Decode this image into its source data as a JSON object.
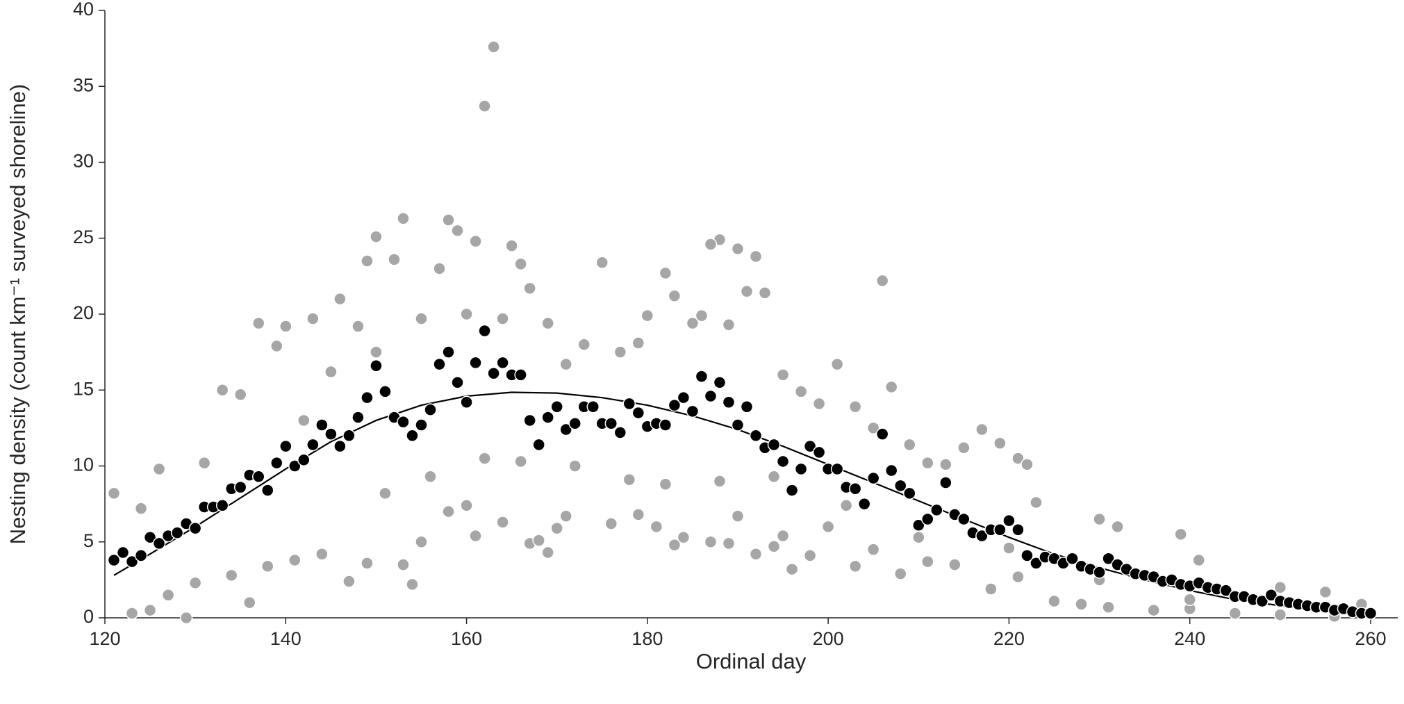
{
  "chart_data": {
    "type": "scatter",
    "x_label": "Ordinal day",
    "y_label": "Nesting density (count km⁻¹ surveyed shoreline)",
    "xlim": [
      120,
      263
    ],
    "ylim": [
      0,
      40
    ],
    "xticks": [
      120,
      140,
      160,
      180,
      200,
      220,
      240,
      260
    ],
    "yticks": [
      0,
      5,
      10,
      15,
      20,
      25,
      30,
      35,
      40
    ],
    "grid": false,
    "series": [
      {
        "mode": "markers",
        "color": "#a6a6a6",
        "x": [
          163,
          162,
          153,
          158,
          159,
          150,
          161,
          165,
          188,
          187,
          190,
          192,
          175,
          149,
          206,
          182,
          129,
          121,
          124,
          126,
          131,
          133,
          135,
          137,
          139,
          140,
          143,
          146,
          148,
          152,
          155,
          157,
          160,
          164,
          166,
          167,
          169,
          171,
          173,
          177,
          179,
          180,
          183,
          185,
          186,
          189,
          191,
          193,
          195,
          197,
          199,
          201,
          203,
          205,
          207,
          209,
          211,
          213,
          215,
          217,
          219,
          221,
          222,
          223,
          230,
          232,
          239,
          241,
          250,
          255,
          136,
          130,
          123,
          125,
          127,
          134,
          138,
          141,
          144,
          147,
          149,
          151,
          153,
          154,
          155,
          158,
          160,
          161,
          164,
          167,
          168,
          169,
          170,
          171,
          176,
          179,
          181,
          183,
          184,
          187,
          189,
          190,
          192,
          194,
          195,
          196,
          198,
          200,
          203,
          205,
          208,
          211,
          214,
          218,
          221,
          225,
          228,
          231,
          236,
          240,
          245,
          250,
          256,
          259,
          142,
          145,
          150,
          156,
          162,
          166,
          172,
          178,
          182,
          188,
          194,
          202,
          210,
          220,
          230,
          240
        ],
        "values": [
          37.6,
          33.7,
          26.3,
          26.2,
          25.5,
          25.1,
          24.8,
          24.5,
          24.9,
          24.6,
          24.3,
          23.8,
          23.4,
          23.5,
          22.2,
          22.7,
          0,
          8.2,
          7.2,
          9.8,
          10.2,
          15,
          14.7,
          19.4,
          17.9,
          19.2,
          19.7,
          21,
          19.2,
          23.6,
          19.7,
          23,
          20,
          19.7,
          23.3,
          21.7,
          19.4,
          16.7,
          18,
          17.5,
          18.1,
          19.9,
          21.2,
          19.4,
          19.9,
          19.3,
          21.5,
          21.4,
          16,
          14.9,
          14.1,
          16.7,
          13.9,
          12.5,
          15.2,
          11.4,
          10.2,
          10.1,
          11.2,
          12.4,
          11.5,
          10.5,
          10.1,
          7.6,
          6.5,
          6,
          5.5,
          3.8,
          2,
          1.7,
          1,
          2.3,
          0.3,
          0.5,
          1.5,
          2.8,
          3.4,
          3.8,
          4.2,
          2.4,
          3.6,
          8.2,
          3.5,
          2.2,
          5,
          7,
          7.4,
          5.4,
          6.3,
          4.9,
          5.1,
          4.3,
          5.9,
          6.7,
          6.2,
          6.8,
          6,
          4.8,
          5.3,
          5,
          4.9,
          6.7,
          4.2,
          4.7,
          5.4,
          3.2,
          4.1,
          6,
          3.4,
          4.5,
          2.9,
          3.7,
          3.5,
          1.9,
          2.7,
          1.1,
          0.9,
          0.7,
          0.5,
          0.6,
          0.3,
          0.2,
          0.1,
          0.9,
          13,
          16.2,
          17.5,
          9.3,
          10.5,
          10.3,
          10,
          9.1,
          8.8,
          9,
          9.3,
          7.4,
          5.3,
          4.6,
          2.5,
          1.2
        ]
      },
      {
        "mode": "line",
        "color": "#000000",
        "x": [
          121,
          125,
          130,
          135,
          140,
          145,
          150,
          155,
          160,
          165,
          170,
          175,
          180,
          185,
          190,
          195,
          200,
          205,
          210,
          215,
          220,
          225,
          230,
          235,
          240,
          245,
          250,
          255,
          260
        ],
        "values": [
          2.8,
          4.2,
          6,
          7.9,
          9.8,
          11.6,
          13,
          14,
          14.6,
          14.85,
          14.8,
          14.5,
          14,
          13.3,
          12.4,
          11.3,
          10.1,
          8.9,
          7.7,
          6.5,
          5.3,
          4.2,
          3.3,
          2.5,
          1.8,
          1.2,
          0.8,
          0.4,
          0.2
        ]
      },
      {
        "mode": "markers",
        "color": "#000000",
        "x": [
          121,
          122,
          123,
          124,
          125,
          126,
          127,
          128,
          129,
          130,
          131,
          132,
          133,
          134,
          135,
          136,
          137,
          138,
          139,
          140,
          141,
          142,
          143,
          144,
          145,
          146,
          147,
          148,
          149,
          150,
          151,
          152,
          153,
          154,
          155,
          156,
          157,
          158,
          159,
          160,
          161,
          162,
          163,
          164,
          165,
          166,
          167,
          168,
          169,
          170,
          171,
          172,
          173,
          174,
          175,
          176,
          177,
          178,
          179,
          180,
          181,
          182,
          183,
          184,
          185,
          186,
          187,
          188,
          189,
          190,
          191,
          192,
          193,
          194,
          195,
          196,
          197,
          198,
          199,
          200,
          201,
          202,
          203,
          204,
          205,
          206,
          207,
          208,
          209,
          210,
          211,
          212,
          213,
          214,
          215,
          216,
          217,
          218,
          219,
          220,
          221,
          222,
          223,
          224,
          225,
          226,
          227,
          228,
          229,
          230,
          231,
          232,
          233,
          234,
          235,
          236,
          237,
          238,
          239,
          240,
          241,
          242,
          243,
          244,
          245,
          246,
          247,
          248,
          249,
          250,
          251,
          252,
          253,
          254,
          255,
          256,
          257,
          258,
          259,
          260
        ],
        "values": [
          3.8,
          4.3,
          3.7,
          4.1,
          5.3,
          4.9,
          5.4,
          5.6,
          6.2,
          5.9,
          7.3,
          7.3,
          7.4,
          8.5,
          8.6,
          9.4,
          9.3,
          8.4,
          10.2,
          11.3,
          10,
          10.4,
          11.4,
          12.7,
          12.1,
          11.3,
          12,
          13.2,
          14.5,
          16.6,
          14.9,
          13.2,
          12.9,
          12,
          12.7,
          13.7,
          16.7,
          17.5,
          15.5,
          14.2,
          16.8,
          18.9,
          16.1,
          16.8,
          16,
          16,
          13,
          11.4,
          13.2,
          13.9,
          12.4,
          12.8,
          13.9,
          13.9,
          12.8,
          12.8,
          12.2,
          14.1,
          13.5,
          12.6,
          12.8,
          12.7,
          14,
          14.5,
          13.6,
          15.9,
          14.6,
          15.5,
          14.2,
          12.7,
          13.9,
          12,
          11.2,
          11.4,
          10.3,
          8.4,
          9.8,
          11.3,
          10.9,
          9.8,
          9.8,
          8.6,
          8.5,
          7.5,
          9.2,
          12.1,
          9.7,
          8.7,
          8.2,
          6.1,
          6.5,
          7.1,
          8.9,
          6.8,
          6.5,
          5.6,
          5.4,
          5.8,
          5.8,
          6.4,
          5.8,
          4.1,
          3.6,
          4,
          3.9,
          3.6,
          3.9,
          3.4,
          3.2,
          3,
          3.9,
          3.5,
          3.2,
          2.9,
          2.8,
          2.7,
          2.4,
          2.5,
          2.2,
          2.1,
          2.3,
          2,
          1.9,
          1.8,
          1.4,
          1.4,
          1.2,
          1.1,
          1.5,
          1.1,
          1,
          0.9,
          0.8,
          0.7,
          0.7,
          0.5,
          0.6,
          0.4,
          0.3,
          0.3
        ]
      }
    ]
  }
}
